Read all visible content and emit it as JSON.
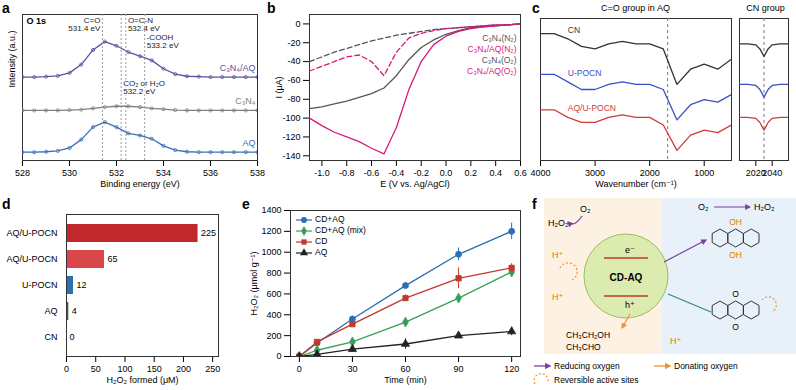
{
  "chart_data": [
    {
      "type": "line",
      "title": "a",
      "subtitle": "O 1s",
      "x_label": "Binding energy (eV)",
      "y_label": "Intensity (a.u.)",
      "x": [
        528,
        528.5,
        529,
        529.5,
        530,
        530.5,
        531,
        531.5,
        532,
        532.5,
        533,
        533.5,
        534,
        534.5,
        535,
        535.5,
        536,
        536.5,
        537,
        537.5,
        538
      ],
      "series": [
        {
          "name": "C₃N₄/AQ",
          "color": "#5e4fa2",
          "marker": "circle",
          "values": [
            2.1,
            2.1,
            2.11,
            2.13,
            2.2,
            2.4,
            2.75,
            2.95,
            2.85,
            2.7,
            2.6,
            2.5,
            2.3,
            2.17,
            2.12,
            2.11,
            2.1,
            2.1,
            2.1,
            2.1,
            2.1
          ]
        },
        {
          "name": "C₃N₄",
          "color": "#7f7f7f",
          "marker": "circle",
          "values": [
            1.3,
            1.3,
            1.3,
            1.3,
            1.31,
            1.32,
            1.35,
            1.38,
            1.4,
            1.4,
            1.38,
            1.35,
            1.33,
            1.31,
            1.3,
            1.3,
            1.3,
            1.3,
            1.3,
            1.3,
            1.3
          ]
        },
        {
          "name": "AQ",
          "color": "#3b6fb6",
          "marker": "circle",
          "values": [
            0.3,
            0.3,
            0.31,
            0.33,
            0.4,
            0.6,
            0.9,
            1.02,
            0.9,
            0.75,
            0.7,
            0.62,
            0.45,
            0.35,
            0.31,
            0.3,
            0.3,
            0.3,
            0.3,
            0.3,
            0.3
          ]
        }
      ],
      "annotations": [
        {
          "text": "C=O\n531.4 eV",
          "x": 531.4
        },
        {
          "text": "O=C-N\n532.4 eV",
          "x": 532.4
        },
        {
          "text": "-COOH\n533.2 eV",
          "x": 533.2
        },
        {
          "text": "CO₂ or H₂O\n532.2 eV",
          "x": 532.2
        }
      ],
      "xlim": [
        528,
        538
      ],
      "xticks": [
        528,
        530,
        532,
        534,
        536,
        538
      ],
      "ylim": [
        0.1,
        3.6
      ],
      "tick_labels": "x"
    },
    {
      "type": "line",
      "title": "b",
      "x_label": "E (V vs. Ag/AgCl)",
      "y_label": "I (μA)",
      "x": [
        -1.1,
        -1.0,
        -0.9,
        -0.8,
        -0.7,
        -0.6,
        -0.5,
        -0.4,
        -0.3,
        -0.2,
        -0.1,
        0,
        0.1,
        0.2,
        0.3,
        0.4,
        0.5,
        0.6
      ],
      "series": [
        {
          "name": "C₃N₄(N₂)",
          "color": "#555555",
          "line_style": "dashed",
          "values": [
            -40,
            -35,
            -30,
            -26,
            -22,
            -18,
            -15,
            -12,
            -10,
            -8,
            -6,
            -5,
            -4,
            -3,
            -2,
            -1,
            -1,
            0
          ]
        },
        {
          "name": "C₃N₄/AQ(N₂)",
          "color": "#d6197a",
          "line_style": "dashed",
          "values": [
            -50,
            -45,
            -40,
            -35,
            -33,
            -40,
            -55,
            -30,
            -15,
            -10,
            -7,
            -5,
            -4,
            -3,
            -2,
            -1,
            -1,
            0
          ]
        },
        {
          "name": "C₃N₄(O₂)",
          "color": "#555555",
          "line_style": "solid",
          "values": [
            -90,
            -88,
            -85,
            -82,
            -78,
            -74,
            -68,
            -55,
            -38,
            -25,
            -17,
            -11,
            -7,
            -4,
            -3,
            -2,
            -1,
            0
          ]
        },
        {
          "name": "C₃N₄/AQ(O₂)",
          "color": "#d6197a",
          "line_style": "solid",
          "values": [
            -100,
            -108,
            -115,
            -120,
            -125,
            -132,
            -138,
            -110,
            -70,
            -40,
            -22,
            -13,
            -8,
            -5,
            -3,
            -2,
            -1,
            0
          ]
        }
      ],
      "xlim": [
        -1.1,
        0.6
      ],
      "xticks": [
        {
          "value": -1.0,
          "label": "-1.0"
        },
        -0.8,
        -0.6,
        -0.4,
        -0.2,
        {
          "value": 0,
          "label": "0.0"
        },
        0.2,
        0.4,
        0.6
      ],
      "ylim": [
        -145,
        10
      ],
      "yticks": [
        -140,
        -120,
        -100,
        -80,
        -60,
        -40,
        -20,
        0
      ]
    },
    {
      "type": "line",
      "title": "c",
      "subtitle": "C=O group in AQ",
      "x_label": "Wavenumber (cm⁻¹)",
      "x": [
        4000,
        3750,
        3500,
        3250,
        3000,
        2750,
        2500,
        2250,
        2000,
        1750,
        1500,
        1250,
        1000,
        750,
        500
      ],
      "series": [
        {
          "name": "CN",
          "color": "#333333",
          "values": [
            2.3,
            2.3,
            2.2,
            2.05,
            2.0,
            2.1,
            2.15,
            2.1,
            2.1,
            2.0,
            1.3,
            1.6,
            1.7,
            1.6,
            1.8
          ]
        },
        {
          "name": "U-POCN",
          "color": "#3b4fc4",
          "values": [
            1.5,
            1.5,
            1.35,
            1.2,
            1.2,
            1.3,
            1.35,
            1.3,
            1.3,
            1.2,
            0.6,
            0.9,
            1.0,
            0.95,
            1.1
          ]
        },
        {
          "name": "AQ/U-POCN",
          "color": "#d23a3a",
          "values": [
            0.8,
            0.8,
            0.65,
            0.55,
            0.55,
            0.65,
            0.7,
            0.65,
            0.65,
            0.5,
            0.0,
            0.3,
            0.4,
            0.35,
            0.5
          ]
        }
      ],
      "reference_x": 1670,
      "xlim": [
        4000,
        500
      ],
      "xticks": [
        4000,
        3000,
        2000,
        1000
      ],
      "ylim": [
        -0.2,
        2.6
      ],
      "tick_labels": "x"
    },
    {
      "type": "line",
      "subtitle": "CN group",
      "x": [
        2000,
        2010,
        2020,
        2025,
        2030,
        2035,
        2040,
        2050,
        2060
      ],
      "series": [
        {
          "color": "#333333",
          "values": [
            2.1,
            2.1,
            2.08,
            2.0,
            1.85,
            2.0,
            2.08,
            2.1,
            2.1
          ]
        },
        {
          "color": "#3b4fc4",
          "values": [
            1.3,
            1.3,
            1.28,
            1.2,
            1.05,
            1.2,
            1.28,
            1.3,
            1.3
          ]
        },
        {
          "color": "#d23a3a",
          "values": [
            0.65,
            0.65,
            0.63,
            0.55,
            0.4,
            0.55,
            0.63,
            0.65,
            0.65
          ]
        }
      ],
      "reference_x": 2030,
      "xlim": [
        2000,
        2060
      ],
      "xticks": [
        2020,
        2040
      ],
      "ylim": [
        -0.2,
        2.6
      ],
      "tick_labels": "x"
    },
    {
      "type": "bar",
      "title": "d",
      "orientation": "horizontal",
      "x_label": "H₂O₂ formed (μM)",
      "categories": [
        "AQ/U-POCN",
        "AQ/U-POCN",
        "U-POCN",
        "AQ",
        "CN"
      ],
      "values": [
        225,
        65,
        12,
        4,
        0
      ],
      "colors": [
        "#c0282d",
        "#d9474b",
        "#2f6fb0",
        "#2e6b3a",
        "#333333"
      ],
      "data_labels": true,
      "xlim": [
        0,
        260
      ],
      "xticks": [
        0,
        50,
        100,
        150,
        200,
        250
      ]
    },
    {
      "type": "line",
      "title": "e",
      "x_label": "Time (min)",
      "y_label": "H₂O₂ (μmol g⁻¹)",
      "x": [
        0,
        10,
        30,
        60,
        90,
        120
      ],
      "series": [
        {
          "name": "CD+AQ",
          "color": "#2a6fb5",
          "marker": "circle",
          "values": [
            0,
            130,
            360,
            680,
            980,
            1200
          ],
          "errors": [
            0,
            10,
            20,
            25,
            60,
            80
          ]
        },
        {
          "name": "CD+AQ (mix)",
          "color": "#3a9e5a",
          "marker": "diamond",
          "values": [
            0,
            60,
            140,
            330,
            560,
            810
          ],
          "errors": [
            0,
            10,
            25,
            35,
            20,
            40
          ]
        },
        {
          "name": "CD",
          "color": "#c0392b",
          "marker": "square",
          "values": [
            0,
            140,
            310,
            560,
            750,
            850
          ],
          "errors": [
            0,
            10,
            20,
            30,
            100,
            40
          ]
        },
        {
          "name": "AQ",
          "color": "#222222",
          "marker": "triangle",
          "values": [
            0,
            20,
            70,
            120,
            200,
            240
          ],
          "errors": [
            0,
            10,
            20,
            50,
            20,
            40
          ]
        }
      ],
      "legend": "upper left",
      "xlim": [
        -5,
        125
      ],
      "xticks": [
        0,
        30,
        60,
        90,
        120
      ],
      "ylim": [
        0,
        1400
      ],
      "yticks": [
        0,
        200,
        400,
        600,
        800,
        1000,
        1200,
        1400
      ]
    }
  ],
  "diagram": {
    "title": "f",
    "center": "CD-AQ",
    "electron": "e⁻",
    "hole": "h⁺",
    "product": "H₂O₂",
    "oxygen": "O₂",
    "proton": "H⁺",
    "hydroxyl": "OH",
    "carbonyl": "O",
    "donor": "CH₃CH₂OH",
    "oxidized_donor": "CH₃CHO",
    "key": [
      "Reducing oxygen",
      "Donating oxygen",
      "Reversible active sites"
    ]
  }
}
